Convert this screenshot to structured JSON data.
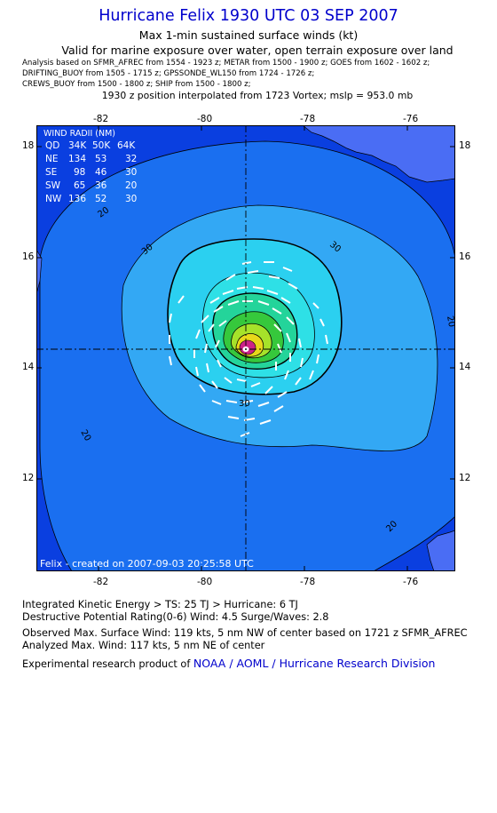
{
  "header": {
    "title": "Hurricane Felix 1930 UTC 03 SEP 2007",
    "subtitle": "Max 1-min sustained surface winds (kt)",
    "validity": "Valid for marine exposure over water, open terrain exposure over land",
    "analysis_lines": [
      "Analysis based on  SFMR_AFREC from 1554 - 1923 z;  METAR from 1500 - 1900 z;  GOES from 1602 - 1602 z;",
      "DRIFTING_BUOY from 1505 - 1715 z;  GPSSONDE_WL150 from 1724 - 1726 z;",
      "CREWS_BUOY from 1500 - 1800 z;  SHIP from 1500 - 1800 z;"
    ],
    "position_note": "1930 z position interpolated from 1723 Vortex; mslp = 953.0 mb"
  },
  "map": {
    "lon_ticks": [
      "-82",
      "-80",
      "-78",
      "-76"
    ],
    "lat_ticks": [
      "18",
      "16",
      "14",
      "12"
    ],
    "contour_labels": [
      "20",
      "20",
      "30",
      "30",
      "20",
      "20",
      "30"
    ],
    "credit": "Felix - created on 2007-09-03 20:25:58 UTC",
    "colors": {
      "ocean_outer": "#0a3fe0",
      "band_20": "#1a6ff0",
      "band_30": "#33a8f4",
      "band_50": "#2ee0e6",
      "band_64": "#24d49a",
      "band_80": "#36c83c",
      "band_96": "#a6e22a",
      "band_110": "#e8d81a",
      "land": "#4a6df4"
    }
  },
  "wind_radii": {
    "title": "WIND RADII (NM)",
    "header": [
      "QD",
      "34K",
      "50K",
      "64K"
    ],
    "rows": [
      [
        "NE",
        "134",
        "53",
        "32"
      ],
      [
        "SE",
        "98",
        "46",
        "30"
      ],
      [
        "SW",
        "65",
        "36",
        "20"
      ],
      [
        "NW",
        "136",
        "52",
        "30"
      ]
    ]
  },
  "footer": {
    "ike": "Integrated Kinetic Energy > TS: 25 TJ   > Hurricane: 6 TJ",
    "dpr": "Destructive Potential Rating(0-6)   Wind: 4.5 Surge/Waves: 2.8",
    "observed": "Observed Max. Surface Wind: 119 kts, 5 nm NW of center based on 1721 z SFMR_AFREC",
    "analyzed": "Analyzed Max. Wind: 117 kts, 5 nm NE of center",
    "credit_prefix": "Experimental research product of",
    "credit_link": "NOAA / AOML / Hurricane Research Division"
  }
}
